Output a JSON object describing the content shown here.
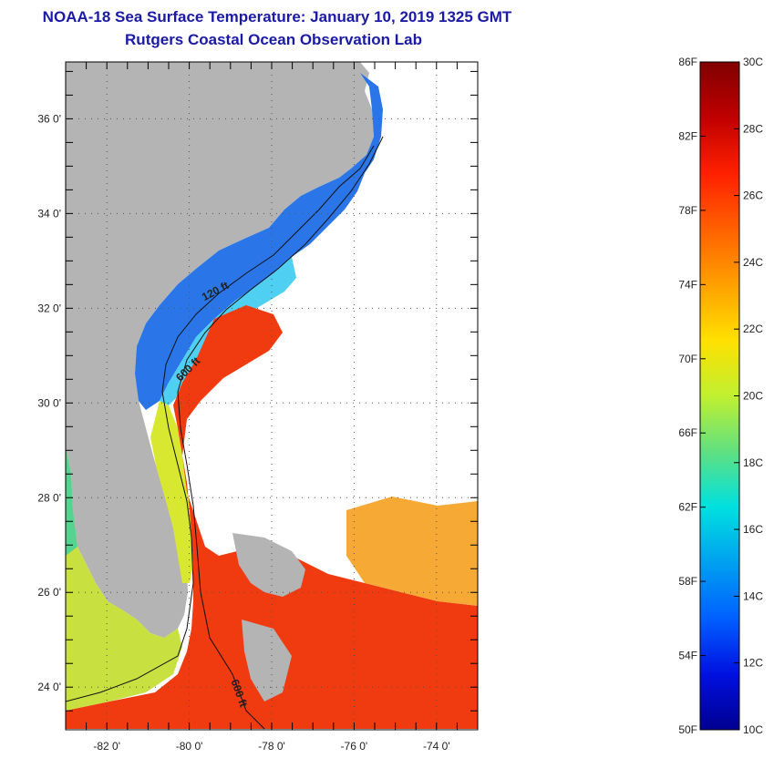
{
  "title": {
    "line1": "NOAA-18 Sea Surface Temperature:  January 10, 2019 1325 GMT",
    "line2": "Rutgers Coastal Ocean Observation Lab"
  },
  "map": {
    "lat_labels": [
      "36 0'",
      "34 0'",
      "32 0'",
      "30 0'",
      "28 0'",
      "26 0'",
      "24 0'"
    ],
    "lon_labels": [
      "-82 0'",
      "-80 0'",
      "-78 0'",
      "-76 0'",
      "-74 0'"
    ],
    "lat_values": [
      36,
      34,
      32,
      30,
      28,
      26,
      24
    ],
    "lon_values": [
      -82,
      -80,
      -78,
      -76,
      -74
    ],
    "lat_range": [
      23.1,
      37.2
    ],
    "lon_range": [
      -83.0,
      -73.0
    ],
    "contours": [
      "120 ft",
      "600 ft",
      "600 ft"
    ],
    "land_color": "#b4b4b4",
    "no_data_color": "#ffffff"
  },
  "colorbar": {
    "f_labels": [
      "86F",
      "82F",
      "78F",
      "74F",
      "70F",
      "66F",
      "62F",
      "58F",
      "54F",
      "50F"
    ],
    "c_labels": [
      "30C",
      "28C",
      "26C",
      "24C",
      "22C",
      "20C",
      "18C",
      "16C",
      "14C",
      "12C",
      "10C"
    ],
    "f_values": [
      86,
      82,
      78,
      74,
      70,
      66,
      62,
      58,
      54,
      50
    ],
    "c_values": [
      30,
      28,
      26,
      24,
      22,
      20,
      18,
      16,
      14,
      12,
      10
    ],
    "range_c": [
      10,
      30
    ],
    "colors": [
      "#800000",
      "#c00000",
      "#ff2000",
      "#ff6000",
      "#ffa000",
      "#ffe000",
      "#c0f030",
      "#60e080",
      "#00e0e0",
      "#00a0f0",
      "#0060ff",
      "#0010e0",
      "#000090"
    ]
  }
}
